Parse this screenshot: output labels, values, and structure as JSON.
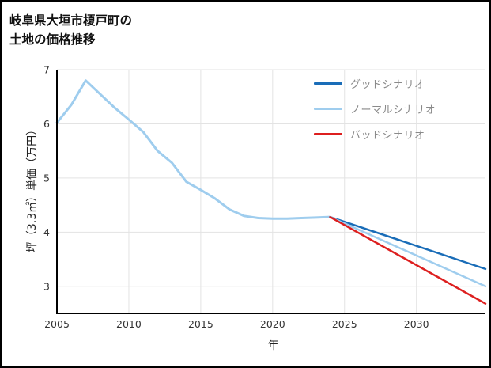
{
  "title": {
    "line1": "岐阜県大垣市榎戸町の",
    "line2": "土地の価格推移"
  },
  "chart_data": {
    "type": "line",
    "title": "岐阜県大垣市榎戸町の土地の価格推移",
    "xlabel": "年",
    "ylabel": "坪（3.3㎡）単価（万円）",
    "xlim": [
      2005,
      2034.8
    ],
    "ylim": [
      2.5,
      7.0
    ],
    "xticks": [
      2005,
      2010,
      2015,
      2020,
      2025,
      2030
    ],
    "yticks": [
      3,
      4,
      5,
      6,
      7
    ],
    "grid": true,
    "legend_position": "top-right",
    "colors": {
      "good": "#1a6db8",
      "normal": "#9fcdee",
      "bad": "#dd1f1f",
      "axis": "#000000",
      "gridline": "#e3e3e3"
    },
    "series": [
      {
        "name": "historical",
        "color": "#9fcdee",
        "width": 3,
        "x": [
          2005,
          2006,
          2007,
          2008,
          2009,
          2010,
          2011,
          2012,
          2013,
          2014,
          2015,
          2016,
          2017,
          2018,
          2019,
          2020,
          2021,
          2022,
          2023,
          2024
        ],
        "y": [
          6.02,
          6.35,
          6.8,
          6.55,
          6.3,
          6.08,
          5.85,
          5.5,
          5.28,
          4.93,
          4.78,
          4.62,
          4.42,
          4.3,
          4.26,
          4.25,
          4.25,
          4.26,
          4.27,
          4.28
        ]
      },
      {
        "name": "good-scenario",
        "color": "#1a6db8",
        "width": 2.5,
        "x": [
          2024,
          2034.8
        ],
        "y": [
          4.28,
          3.32
        ]
      },
      {
        "name": "normal-scenario",
        "color": "#9fcdee",
        "width": 2.5,
        "x": [
          2024,
          2034.8
        ],
        "y": [
          4.28,
          3.0
        ]
      },
      {
        "name": "bad-scenario",
        "color": "#dd1f1f",
        "width": 2.5,
        "x": [
          2024,
          2034.8
        ],
        "y": [
          4.28,
          2.68
        ]
      }
    ],
    "legend": [
      {
        "label": "グッドシナリオ",
        "color": "#1a6db8"
      },
      {
        "label": "ノーマルシナリオ",
        "color": "#9fcdee"
      },
      {
        "label": "バッドシナリオ",
        "color": "#dd1f1f"
      }
    ]
  }
}
